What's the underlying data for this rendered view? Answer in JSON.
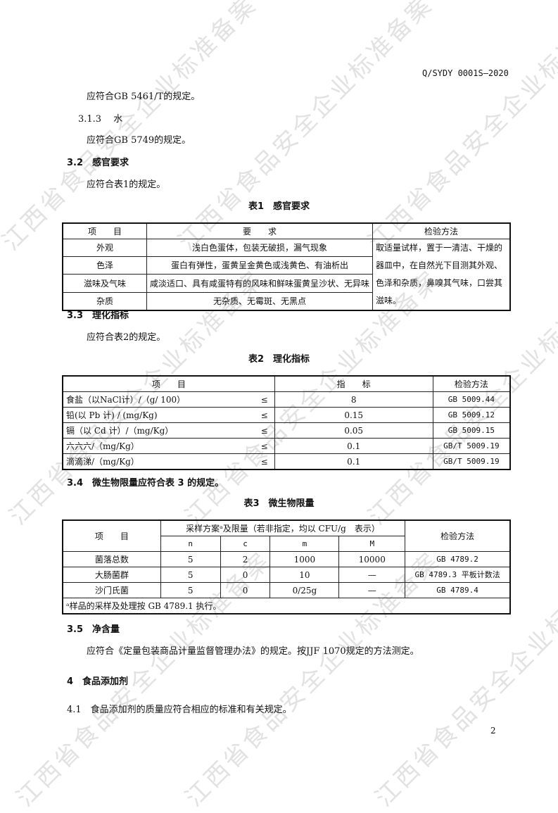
{
  "watermark": "江西省食品安全企业标准备案",
  "header": {
    "doc_code": "Q/SYDY 0001S—2020"
  },
  "body": {
    "p1": "应符合GB 5461/T的规定。",
    "s313": "3.1.3　 水",
    "p2": "应符合GB 5749的规定。",
    "s32": "3.2　感官要求",
    "p3": "应符合表1的规定。",
    "t1_caption": "表1　感官要求",
    "s33": "3.3　理化指标",
    "p4": "应符合表2的规定。",
    "t2_caption": "表2　理化指标",
    "s34": "3.4　微生物限量应符合表 3 的规定。",
    "t3_caption": "表3　微生物限量",
    "s35": "3.5　净含量",
    "p5": "应符合《定量包装商品计量监督管理办法》的规定。按JJF 1070规定的方法测定。",
    "s4": "4　食品添加剂",
    "s41": "4.1　食品添加剂的质量应符合相应的标准和有关规定。"
  },
  "table1": {
    "headers": [
      "项　　目",
      "要　　求",
      "检验方法"
    ],
    "rows": [
      [
        "外观",
        "浅白色蛋体，包装无破损，漏气现象"
      ],
      [
        "色泽",
        "蛋白有弹性，蛋黄呈金黄色或浅黄色、有油析出"
      ],
      [
        "滋味及气味",
        "咸淡适口、具有咸蛋特有的风味和鲜味蛋黄呈沙状、无异味"
      ],
      [
        "杂质",
        "无杂质、无霉斑、无黑点"
      ]
    ],
    "method": "取适量试样，置于一清洁、干燥的器皿中，在自然光下目测其外观、色泽和杂质，鼻嗅其气味，口尝其滋味。"
  },
  "table2": {
    "headers": [
      "项　　目",
      "指　　标",
      "检验方法"
    ],
    "le": "≤",
    "rows": [
      [
        "食盐（以NaCl计）/（g/ 100）",
        "8",
        "GB 5009.44"
      ],
      [
        "铅(以 Pb 计) / (mg/Kg)",
        "0.15",
        "GB 5009.12"
      ],
      [
        "镉（以 Cd 计）/（mg/Kg）",
        "0.05",
        "GB 5009.15"
      ],
      [
        "六六六/（mg/Kg）",
        "0.1",
        "GB/T 5009.19"
      ],
      [
        "滴滴涕/（mg/Kg）",
        "0.1",
        "GB/T 5009.19"
      ]
    ]
  },
  "table3": {
    "item_header": "项　　目",
    "plan_header": "采样方案ᵃ及限量（若非指定，均以 CFU/g　表示）",
    "method_header": "检验方法",
    "sub_headers": [
      "n",
      "c",
      "m",
      "M"
    ],
    "rows": [
      [
        "菌落总数",
        "5",
        "2",
        "1000",
        "10000",
        "GB 4789.2"
      ],
      [
        "大肠菌群",
        "5",
        "0",
        "10",
        "—",
        "GB 4789.3 平板计数法"
      ],
      [
        "沙门氏菌",
        "5",
        "0",
        "0/25g",
        "—",
        "GB 4789.4"
      ]
    ],
    "footnote": "ᵃ样品的采样及处理按 GB 4789.1 执行。"
  },
  "footer": {
    "page_number": "2"
  }
}
